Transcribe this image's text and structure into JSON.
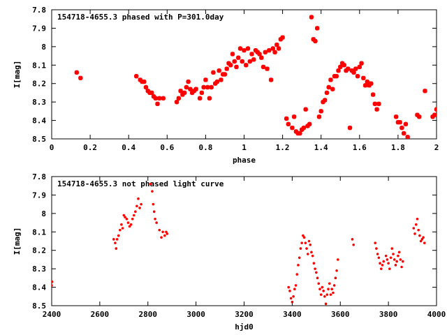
{
  "chart_data": [
    {
      "type": "scatter",
      "title": "154718-4655.3 phased with P=301.0day",
      "xlabel": "phase",
      "ylabel": "I[mag]",
      "xlim": [
        0,
        2
      ],
      "ylim": [
        7.8,
        8.5
      ],
      "y_inverted": true,
      "xticks": [
        "0",
        "0.2",
        "0.4",
        "0.6",
        "0.8",
        "1",
        "1.2",
        "1.4",
        "1.6",
        "1.8",
        "2"
      ],
      "yticks": [
        "7.8",
        "7.9",
        "8",
        "8.1",
        "8.2",
        "8.3",
        "8.4",
        "8.5"
      ],
      "grid": false,
      "marker_color": "#ff0000",
      "marker": "star",
      "series": [
        {
          "x": [
            0.13,
            0.15,
            0.44,
            0.46,
            0.47,
            0.48,
            0.49,
            0.5,
            0.51,
            0.52,
            0.53,
            0.54,
            0.55,
            0.56,
            0.58,
            0.65,
            0.66,
            0.67,
            0.68,
            0.69,
            0.7,
            0.71,
            0.72,
            0.73,
            0.74,
            0.75,
            0.77,
            0.78,
            0.79,
            0.8,
            0.81,
            0.82,
            0.83,
            0.84,
            0.85,
            0.86,
            0.87,
            0.88,
            0.89,
            0.9,
            0.91,
            0.92,
            0.93,
            0.94,
            0.95,
            0.96,
            0.97,
            0.98,
            0.99,
            1.0,
            1.01,
            1.02,
            1.03,
            1.04,
            1.05,
            1.06,
            1.07,
            1.08,
            1.09,
            1.1,
            1.11,
            1.12,
            1.13,
            1.14,
            1.15,
            1.16,
            1.17,
            1.18,
            1.19,
            1.2,
            1.22,
            1.23,
            1.25,
            1.26,
            1.27,
            1.28,
            1.29,
            1.3,
            1.31,
            1.32,
            1.33,
            1.34,
            1.35,
            1.36,
            1.37,
            1.38,
            1.39,
            1.4,
            1.41,
            1.42,
            1.43,
            1.44,
            1.45,
            1.46,
            1.47,
            1.48,
            1.49,
            1.5,
            1.51,
            1.52,
            1.53,
            1.54,
            1.55,
            1.56,
            1.57,
            1.58,
            1.59,
            1.6,
            1.61,
            1.62,
            1.63,
            1.64,
            1.65,
            1.66,
            1.67,
            1.68,
            1.69,
            1.7,
            1.79,
            1.8,
            1.81,
            1.82,
            1.83,
            1.84,
            1.85,
            1.9,
            1.91,
            1.94,
            1.98,
            1.99,
            2.0
          ],
          "y": [
            8.14,
            8.17,
            8.16,
            8.18,
            8.19,
            8.19,
            8.22,
            8.24,
            8.25,
            8.25,
            8.27,
            8.28,
            8.31,
            8.28,
            8.28,
            8.3,
            8.28,
            8.24,
            8.26,
            8.25,
            8.22,
            8.19,
            8.23,
            8.25,
            8.24,
            8.23,
            8.28,
            8.25,
            8.22,
            8.18,
            8.22,
            8.28,
            8.22,
            8.14,
            8.2,
            8.19,
            8.13,
            8.18,
            8.15,
            8.15,
            8.12,
            8.09,
            8.1,
            8.04,
            8.08,
            8.11,
            8.06,
            8.01,
            8.08,
            8.02,
            8.1,
            8.01,
            8.08,
            8.04,
            8.07,
            8.02,
            8.03,
            8.04,
            8.06,
            8.11,
            8.03,
            8.12,
            8.02,
            8.18,
            8.01,
            8.03,
            7.99,
            8.01,
            7.96,
            7.95,
            8.39,
            8.42,
            8.44,
            8.38,
            8.46,
            8.47,
            8.47,
            8.45,
            8.44,
            8.34,
            8.43,
            8.42,
            7.84,
            7.96,
            7.97,
            7.9,
            8.38,
            8.35,
            8.3,
            8.29,
            8.25,
            8.22,
            8.18,
            8.23,
            8.16,
            8.16,
            8.13,
            8.11,
            8.09,
            8.1,
            8.13,
            8.12,
            8.44,
            8.13,
            8.14,
            8.12,
            8.16,
            8.11,
            8.09,
            8.17,
            8.21,
            8.19,
            8.21,
            8.2,
            8.26,
            8.31,
            8.34,
            8.31,
            8.38,
            8.41,
            8.41,
            8.44,
            8.47,
            8.42,
            8.49,
            8.37,
            8.38,
            8.24,
            8.38,
            8.37,
            8.34
          ]
        }
      ]
    },
    {
      "type": "scatter",
      "title": "154718-4655.3 not phased light curve",
      "xlabel": "hjd0",
      "ylabel": "I[mag]",
      "xlim": [
        2400,
        4000
      ],
      "ylim": [
        7.8,
        8.5
      ],
      "y_inverted": true,
      "xticks": [
        "2400",
        "2600",
        "2800",
        "3000",
        "3200",
        "3400",
        "3600",
        "3800",
        "4000"
      ],
      "yticks": [
        "7.8",
        "7.9",
        "8",
        "8.1",
        "8.2",
        "8.3",
        "8.4",
        "8.5"
      ],
      "grid": false,
      "marker_color": "#ff0000",
      "marker": "dot",
      "series": [
        {
          "x": [
            2400,
            2402,
            2658,
            2664,
            2668,
            2672,
            2678,
            2684,
            2690,
            2695,
            2700,
            2705,
            2712,
            2718,
            2724,
            2730,
            2736,
            2742,
            2748,
            2754,
            2760,
            2766,
            2772,
            2812,
            2818,
            2822,
            2826,
            2830,
            2836,
            2848,
            2856,
            2862,
            2870,
            2876,
            2880,
            3385,
            3390,
            3395,
            3400,
            3405,
            3410,
            3415,
            3420,
            3425,
            3430,
            3435,
            3440,
            3445,
            3450,
            3455,
            3460,
            3465,
            3470,
            3475,
            3480,
            3485,
            3490,
            3495,
            3500,
            3505,
            3510,
            3515,
            3520,
            3525,
            3530,
            3535,
            3540,
            3545,
            3550,
            3555,
            3560,
            3565,
            3570,
            3575,
            3580,
            3585,
            3590,
            3650,
            3655,
            3745,
            3750,
            3755,
            3760,
            3765,
            3770,
            3775,
            3780,
            3790,
            3795,
            3800,
            3805,
            3810,
            3815,
            3820,
            3825,
            3830,
            3835,
            3840,
            3845,
            3850,
            3855,
            3860,
            3905,
            3910,
            3915,
            3920,
            3925,
            3930,
            3935,
            3940,
            3945,
            3950
          ],
          "y": [
            8.39,
            8.37,
            8.14,
            8.16,
            8.19,
            8.14,
            8.12,
            8.09,
            8.06,
            8.08,
            8.01,
            8.02,
            8.03,
            8.05,
            8.07,
            8.06,
            8.03,
            8.01,
            7.99,
            7.96,
            7.92,
            7.97,
            7.95,
            7.84,
            7.88,
            7.95,
            7.99,
            8.03,
            8.05,
            8.09,
            8.13,
            8.1,
            8.12,
            8.1,
            8.11,
            8.4,
            8.42,
            8.46,
            8.48,
            8.45,
            8.41,
            8.39,
            8.33,
            8.28,
            8.24,
            8.19,
            8.16,
            8.12,
            8.13,
            8.16,
            8.19,
            8.22,
            8.15,
            8.17,
            8.21,
            8.23,
            8.27,
            8.3,
            8.32,
            8.35,
            8.38,
            8.41,
            8.44,
            8.4,
            8.42,
            8.45,
            8.49,
            8.44,
            8.41,
            8.38,
            8.44,
            8.41,
            8.43,
            8.39,
            8.35,
            8.31,
            8.25,
            8.14,
            8.17,
            8.16,
            8.19,
            8.22,
            8.24,
            8.27,
            8.3,
            8.28,
            8.26,
            8.23,
            8.25,
            8.27,
            8.3,
            8.24,
            8.19,
            8.22,
            8.25,
            8.28,
            8.26,
            8.23,
            8.21,
            8.25,
            8.29,
            8.26,
            8.08,
            8.11,
            8.06,
            8.03,
            8.09,
            8.12,
            8.15,
            8.14,
            8.13,
            8.16
          ]
        }
      ]
    }
  ]
}
